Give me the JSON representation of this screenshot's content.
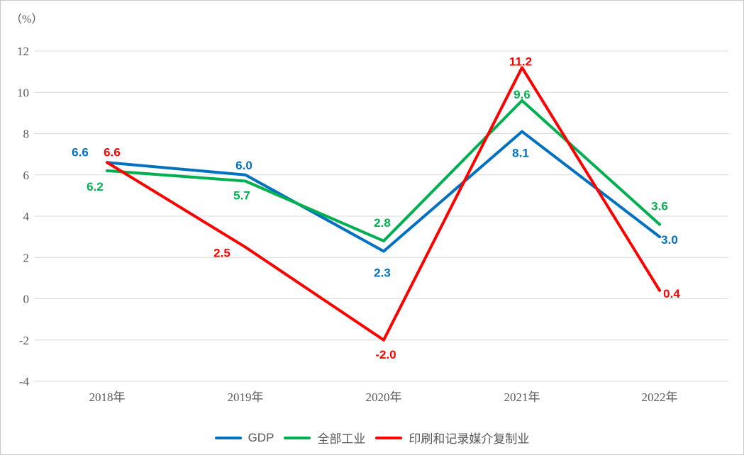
{
  "chart_data": {
    "type": "line",
    "title": "",
    "unit_label": "（%）",
    "categories": [
      "2018年",
      "2019年",
      "2020年",
      "2021年",
      "2022年"
    ],
    "series": [
      {
        "name": "GDP",
        "color": "#0070C0",
        "values": [
          6.6,
          6.0,
          2.3,
          8.1,
          3.0
        ],
        "labels": [
          "6.6",
          "6.0",
          "2.3",
          "8.1",
          "3.0"
        ]
      },
      {
        "name": "全部工业",
        "color": "#00B050",
        "values": [
          6.2,
          5.7,
          2.8,
          9.6,
          3.6
        ],
        "labels": [
          "6.2",
          "5.7",
          "2.8",
          "9.6",
          "3.6"
        ]
      },
      {
        "name": "印刷和记录媒介复制业",
        "color": "#FF0000",
        "values": [
          6.6,
          2.5,
          -2.0,
          11.2,
          0.4
        ],
        "labels": [
          "6.6",
          "2.5",
          "-2.0",
          "11.2",
          "0.4"
        ]
      }
    ],
    "y_axis": {
      "ticks": [
        12,
        10,
        8,
        6,
        4,
        2,
        0,
        -2,
        -4
      ],
      "min": -4,
      "max": 12
    },
    "xlabel": "",
    "ylabel": "",
    "grid": true,
    "gridline_color": "#D9D9D9",
    "axis_text_color": "#595959",
    "legend_position": "bottom"
  }
}
